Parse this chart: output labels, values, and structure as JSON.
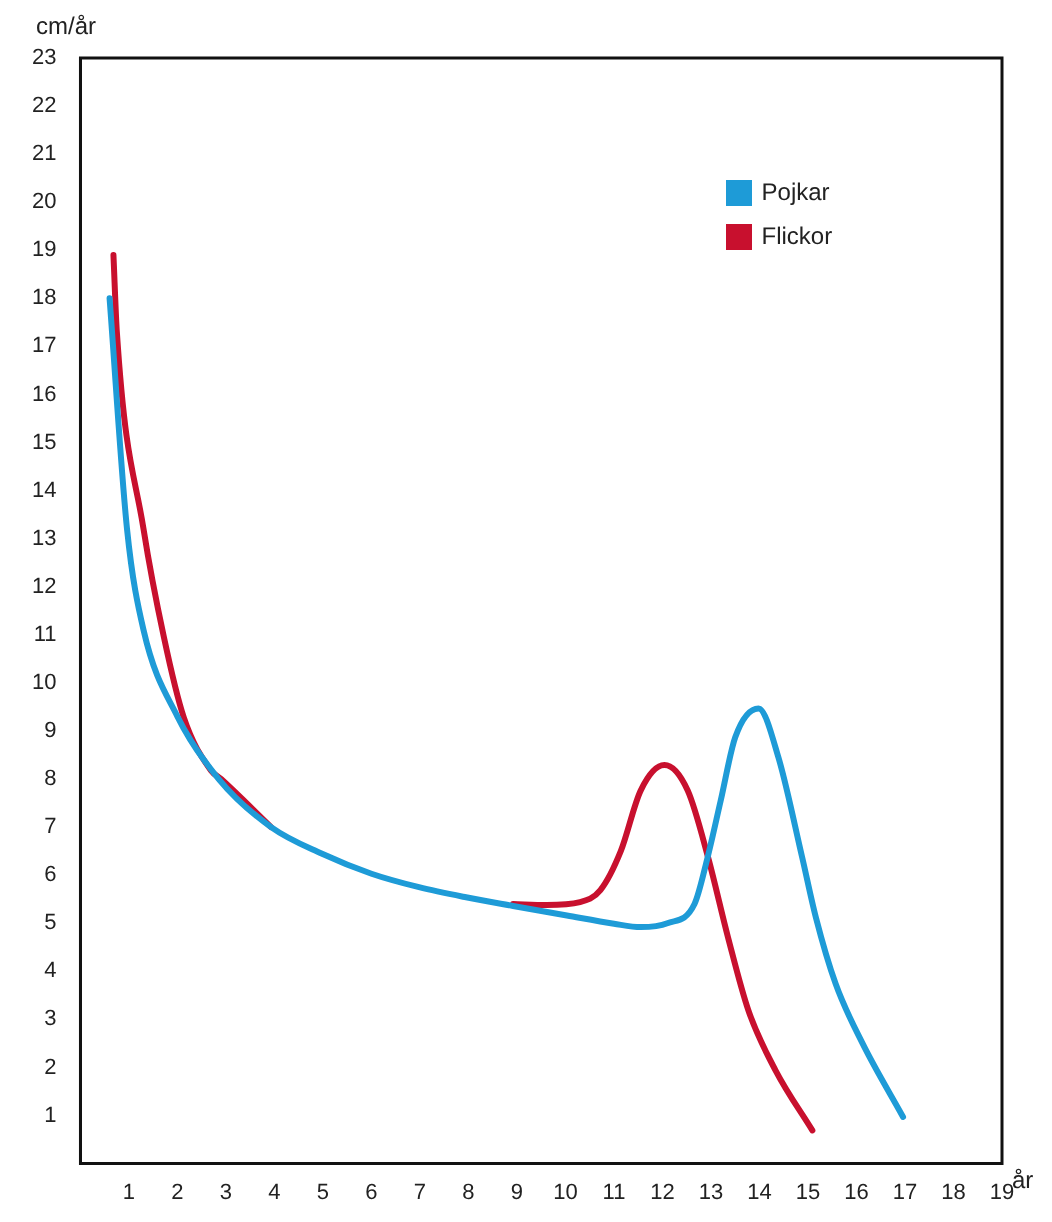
{
  "chart_data": {
    "type": "line",
    "xlabel": "år",
    "ylabel": "cm/år",
    "xlim": [
      0,
      19
    ],
    "ylim": [
      0,
      23
    ],
    "xticks": [
      1,
      2,
      3,
      4,
      5,
      6,
      7,
      8,
      9,
      10,
      11,
      12,
      13,
      14,
      15,
      16,
      17,
      18,
      19
    ],
    "yticks": [
      1,
      2,
      3,
      4,
      5,
      6,
      7,
      8,
      9,
      10,
      11,
      12,
      13,
      14,
      15,
      16,
      17,
      18,
      19,
      20,
      21,
      22,
      23
    ],
    "grid": false,
    "legend": "top right",
    "marker": "none",
    "line_style": "solid",
    "series": [
      {
        "name": "Pojkar",
        "color": "#1e9bd7",
        "x": [
          0.6,
          0.96,
          1.3,
          2.0,
          2.85,
          3.93,
          4.97,
          6.0,
          6.98,
          7.95,
          8.92,
          10.03,
          11.0,
          11.55,
          12.1,
          12.66,
          12.93,
          13.2,
          13.5,
          13.98,
          14.39,
          14.88,
          15.16,
          15.57,
          16.13,
          16.96
        ],
        "values": [
          18.0,
          13.2,
          11.1,
          9.3,
          8.0,
          7.0,
          6.45,
          6.03,
          5.75,
          5.54,
          5.36,
          5.16,
          4.99,
          4.92,
          5.0,
          5.4,
          6.37,
          7.55,
          8.87,
          9.47,
          8.45,
          6.37,
          5.13,
          3.74,
          2.49,
          0.97
        ]
      },
      {
        "name": "Flickor",
        "color": "#c8102e",
        "x": [
          0.68,
          0.75,
          1.3,
          1.72,
          2.13,
          2.69,
          2.9,
          3.93,
          4.97,
          6.0,
          6.98,
          7.95,
          8.92,
          9.61,
          10.3,
          10.72,
          11.14,
          11.55,
          12.04,
          12.52,
          12.94,
          13.35,
          13.77,
          14.33,
          15.09
        ],
        "values": [
          18.9,
          17.3,
          13.2,
          10.95,
          9.28,
          8.18,
          8.0,
          7.0,
          null,
          null,
          null,
          null,
          5.4,
          5.38,
          5.44,
          5.69,
          6.5,
          7.76,
          8.29,
          7.76,
          6.37,
          4.71,
          3.19,
          1.94,
          0.69
        ]
      }
    ]
  }
}
